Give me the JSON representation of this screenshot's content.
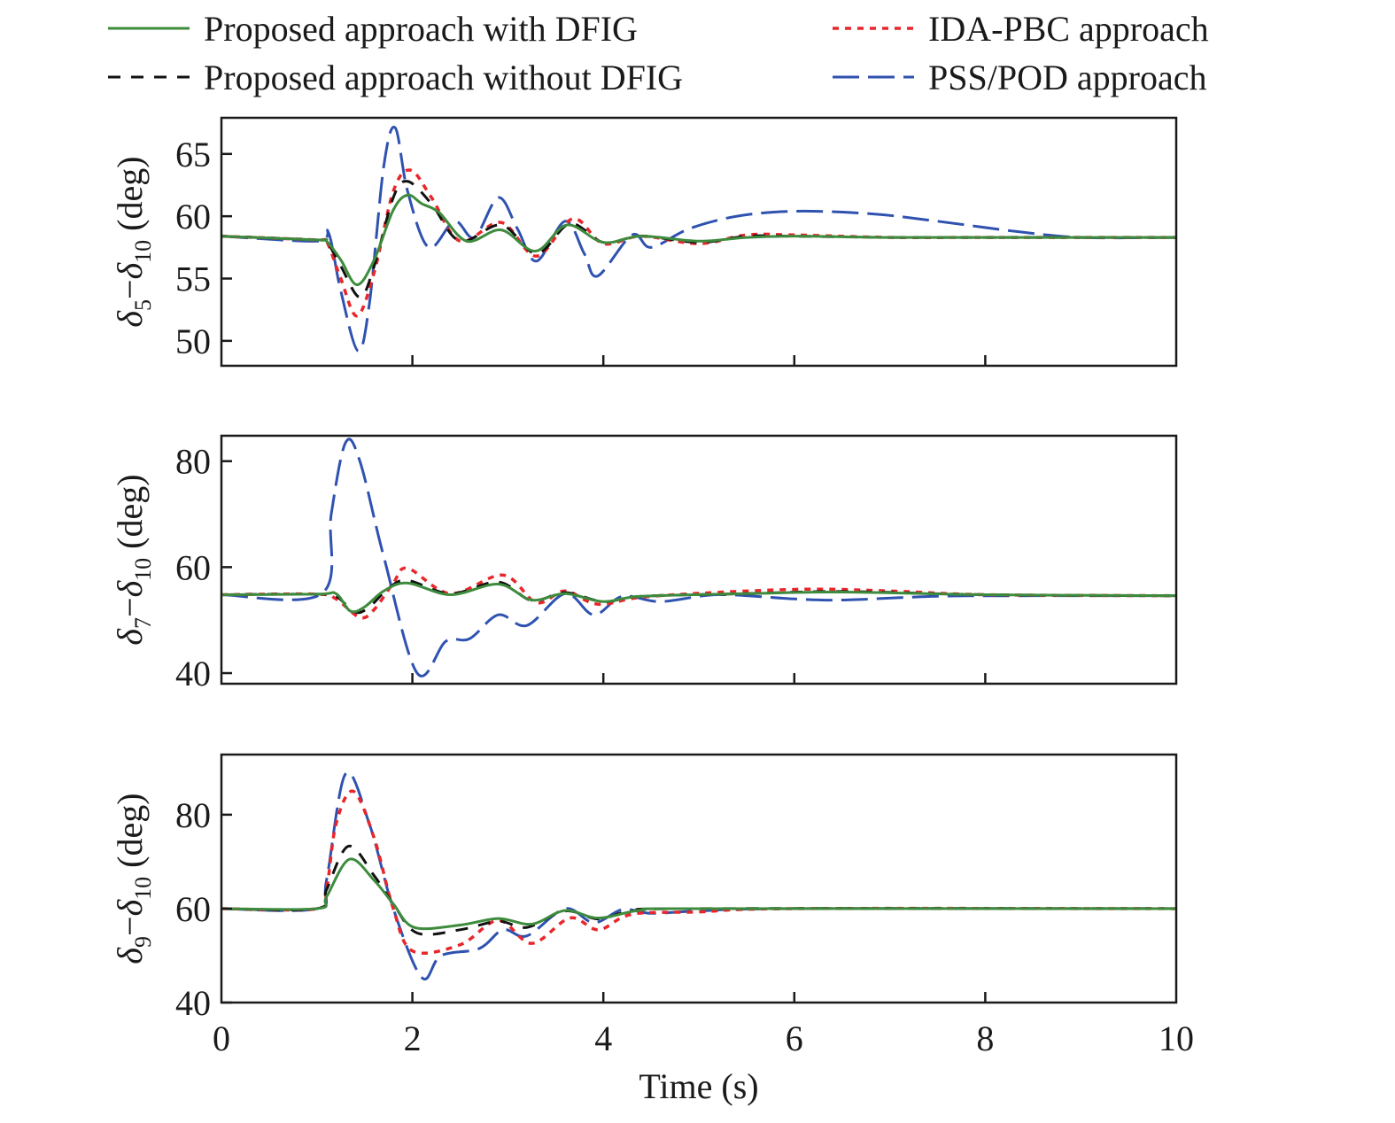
{
  "chart_data": {
    "type": "line",
    "xlabel": "Time (s)",
    "xlim": [
      0,
      10
    ],
    "xticks": [
      0,
      2,
      4,
      6,
      8,
      10
    ],
    "grid": false,
    "legend": {
      "placement": "top",
      "entries": [
        {
          "name": "Proposed approach with DFIG",
          "color": "#3d8b3d",
          "style": "solid"
        },
        {
          "name": "IDA-PBC approach",
          "color": "#e8262b",
          "style": "dotted"
        },
        {
          "name": "Proposed approach without DFIG",
          "color": "#111111",
          "style": "dashed"
        },
        {
          "name": "PSS/POD approach",
          "color": "#2f52b0",
          "style": "long-dashed"
        }
      ]
    },
    "panels": [
      {
        "ylabel": {
          "a": "δ",
          "a_sub": "5",
          "b": "δ",
          "b_sub": "10",
          "unit": " (deg)",
          "minus": "−"
        },
        "ylim": [
          48,
          67.9
        ],
        "yticks": [
          50,
          55,
          60,
          65
        ],
        "series": [
          {
            "name": "Proposed approach with DFIG",
            "x": [
              0,
              1.0,
              1.1,
              1.25,
              1.42,
              1.6,
              1.8,
              1.95,
              2.1,
              2.28,
              2.57,
              2.93,
              3.29,
              3.62,
              4.0,
              4.4,
              5.0,
              5.5,
              6.0,
              7.0,
              8.0,
              10
            ],
            "y": [
              58.4,
              58.1,
              58.0,
              56.5,
              54.5,
              56.5,
              60.5,
              61.7,
              61.0,
              60.3,
              58.0,
              58.9,
              57.2,
              59.3,
              57.9,
              58.4,
              58.0,
              58.3,
              58.4,
              58.3,
              58.3,
              58.3
            ]
          },
          {
            "name": "IDA-PBC approach",
            "x": [
              0,
              1.0,
              1.1,
              1.25,
              1.42,
              1.6,
              1.8,
              1.98,
              2.2,
              2.5,
              2.93,
              3.3,
              3.68,
              4.0,
              4.4,
              5.0,
              5.5,
              6.0,
              7.0,
              8.0,
              10
            ],
            "y": [
              58.4,
              58.1,
              58.0,
              55.0,
              52.0,
              55.5,
              62.0,
              63.7,
              61.5,
              58.0,
              59.5,
              56.8,
              59.8,
              57.8,
              58.4,
              57.8,
              58.5,
              58.5,
              58.3,
              58.3,
              58.3
            ]
          },
          {
            "name": "Proposed approach without DFIG",
            "x": [
              0,
              1.0,
              1.1,
              1.25,
              1.45,
              1.6,
              1.8,
              1.95,
              2.2,
              2.5,
              2.93,
              3.3,
              3.65,
              4.0,
              4.4,
              5.0,
              5.5,
              6.0,
              7.0,
              8.0,
              10
            ],
            "y": [
              58.4,
              58.1,
              58.0,
              56.0,
              53.5,
              56.0,
              61.5,
              62.8,
              61.0,
              58.0,
              59.3,
              57.0,
              59.4,
              57.9,
              58.4,
              57.9,
              58.4,
              58.4,
              58.3,
              58.3,
              58.3
            ]
          },
          {
            "name": "PSS/POD approach",
            "x": [
              0,
              1.0,
              1.12,
              1.25,
              1.43,
              1.55,
              1.7,
              1.82,
              1.95,
              2.17,
              2.44,
              2.65,
              2.9,
              3.1,
              3.3,
              3.6,
              3.8,
              3.94,
              4.3,
              4.5,
              4.9,
              5.4,
              6.0,
              6.8,
              7.5,
              8.3,
              9.0,
              10
            ],
            "y": [
              58.4,
              58.0,
              58.7,
              54.0,
              49.2,
              53.0,
              64.0,
              67.1,
              62.0,
              57.5,
              59.6,
              58.3,
              61.5,
              59.0,
              56.4,
              59.6,
              57.0,
              55.2,
              58.5,
              57.5,
              59.0,
              60.0,
              60.4,
              60.2,
              59.6,
              58.8,
              58.3,
              58.3
            ]
          }
        ]
      },
      {
        "ylabel": {
          "a": "δ",
          "a_sub": "7",
          "b": "δ",
          "b_sub": "10",
          "unit": " (deg)",
          "minus": "−"
        },
        "ylim": [
          38,
          84.8
        ],
        "yticks": [
          40,
          60,
          80
        ],
        "series": [
          {
            "name": "Proposed approach with DFIG",
            "x": [
              0,
              1.0,
              1.2,
              1.35,
              1.5,
              1.7,
              1.95,
              2.4,
              2.9,
              3.25,
              3.6,
              4.0,
              4.4,
              5.5,
              6.5,
              8.0,
              10
            ],
            "y": [
              54.8,
              54.9,
              55.0,
              51.7,
              52.5,
              55.5,
              57.0,
              54.8,
              56.8,
              53.8,
              55.0,
              53.5,
              54.5,
              55.0,
              55.3,
              54.8,
              54.6
            ]
          },
          {
            "name": "IDA-PBC approach",
            "x": [
              0,
              1.0,
              1.2,
              1.45,
              1.6,
              1.8,
              1.95,
              2.4,
              2.95,
              3.3,
              3.6,
              3.95,
              4.5,
              6.0,
              7.0,
              8.0,
              10
            ],
            "y": [
              54.8,
              54.9,
              54.0,
              50.5,
              52.0,
              57.0,
              59.8,
              55.0,
              58.5,
              53.3,
              55.5,
              53.0,
              54.5,
              55.8,
              55.5,
              54.8,
              54.6
            ]
          },
          {
            "name": "Proposed approach without DFIG",
            "x": [
              0,
              1.0,
              1.2,
              1.4,
              1.55,
              1.75,
              1.95,
              2.4,
              2.9,
              3.25,
              3.6,
              4.0,
              4.4,
              5.5,
              6.5,
              8.0,
              10
            ],
            "y": [
              54.8,
              54.9,
              54.5,
              51.5,
              52.5,
              56.0,
              57.5,
              55.0,
              57.2,
              53.7,
              55.2,
              53.5,
              54.5,
              55.0,
              55.4,
              54.8,
              54.6
            ]
          },
          {
            "name": "PSS/POD approach",
            "x": [
              0,
              1.05,
              1.15,
              1.3,
              1.45,
              1.7,
              2.05,
              2.35,
              2.6,
              2.9,
              3.2,
              3.6,
              3.9,
              4.2,
              4.6,
              5.2,
              6.0,
              6.5,
              7.5,
              8.5,
              10
            ],
            "y": [
              54.8,
              55.0,
              70.0,
              83.5,
              80.0,
              62.0,
              40.0,
              46.0,
              46.5,
              51.0,
              49.0,
              55.0,
              51.0,
              54.5,
              53.5,
              54.8,
              54.0,
              53.8,
              54.5,
              54.6,
              54.6
            ]
          }
        ]
      },
      {
        "ylabel": {
          "a": "δ",
          "a_sub": "9",
          "b": "δ",
          "b_sub": "10",
          "unit": " (deg)",
          "minus": "−"
        },
        "ylim": [
          40,
          92.8
        ],
        "yticks": [
          40,
          60,
          80
        ],
        "series": [
          {
            "name": "Proposed approach with DFIG",
            "x": [
              0,
              1.0,
              1.1,
              1.34,
              1.6,
              1.8,
              2.02,
              2.5,
              2.9,
              3.25,
              3.6,
              3.95,
              4.4,
              5.0,
              10
            ],
            "y": [
              60,
              60,
              62.5,
              70.5,
              66.0,
              61.0,
              56.0,
              56.5,
              57.9,
              56.7,
              59.6,
              58.0,
              59.7,
              60,
              60
            ]
          },
          {
            "name": "IDA-PBC approach",
            "x": [
              0,
              1.0,
              1.1,
              1.2,
              1.38,
              1.6,
              1.8,
              2.0,
              2.5,
              2.9,
              3.25,
              3.65,
              3.95,
              4.3,
              5.0,
              6.0,
              10
            ],
            "y": [
              60,
              60,
              64,
              78,
              85.0,
              75.0,
              60.0,
              51.0,
              52.3,
              57.5,
              52.6,
              58.0,
              55.5,
              58.8,
              59.3,
              60,
              60
            ]
          },
          {
            "name": "Proposed approach without DFIG",
            "x": [
              0,
              1.0,
              1.1,
              1.33,
              1.6,
              1.8,
              2.05,
              2.5,
              2.9,
              3.2,
              3.6,
              3.95,
              4.3,
              5.0,
              10
            ],
            "y": [
              60,
              60,
              64,
              73.3,
              67.0,
              61.0,
              54.8,
              55.5,
              57.3,
              56.0,
              59.5,
              57.8,
              59.5,
              60,
              60
            ]
          },
          {
            "name": "PSS/POD approach",
            "x": [
              0,
              1.0,
              1.1,
              1.3,
              1.55,
              1.8,
              2.1,
              2.3,
              2.7,
              2.95,
              3.2,
              3.6,
              3.9,
              4.2,
              4.5,
              5.0,
              6.0,
              10
            ],
            "y": [
              60,
              60,
              66,
              88.7,
              78.0,
              60.0,
              45.3,
              50.0,
              51.5,
              55.5,
              54.2,
              60.0,
              57.0,
              59.8,
              59.0,
              59.5,
              60,
              60
            ]
          }
        ]
      }
    ]
  }
}
